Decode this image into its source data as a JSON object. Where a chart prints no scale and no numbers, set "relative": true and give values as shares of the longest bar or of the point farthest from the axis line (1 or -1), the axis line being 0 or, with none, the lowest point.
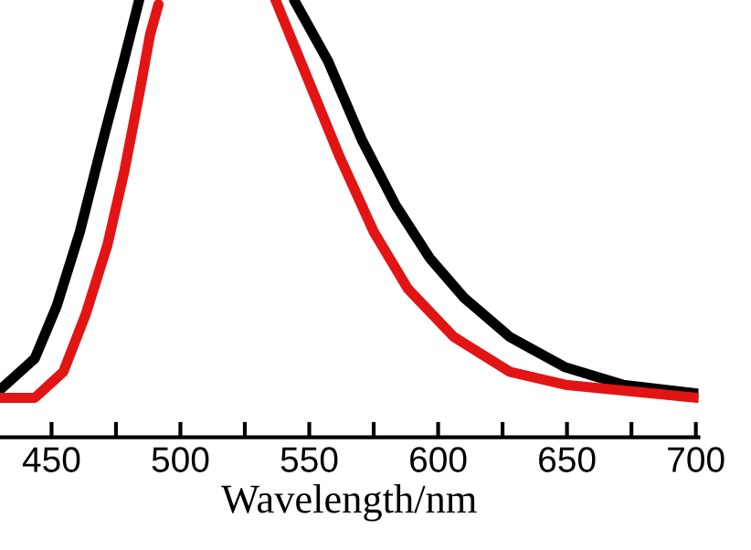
{
  "chart_data": {
    "type": "line",
    "xlabel": "Wavelength/nm",
    "relative": true,
    "xlim": [
      430,
      701
    ],
    "xticks": [
      450,
      {
        "value": 475,
        "label": null
      },
      500,
      {
        "value": 525,
        "label": null
      },
      550,
      {
        "value": 575,
        "label": null
      },
      600,
      {
        "value": 625,
        "label": null
      },
      650,
      {
        "value": 675,
        "label": null
      },
      700
    ],
    "tick_labels": "x",
    "grid": false,
    "legend": false,
    "line_style": "solid",
    "series": [
      {
        "color": "#000000",
        "x": [
          430.3,
          443.5,
          452,
          461,
          470,
          478,
          484,
          514,
          544.1,
          557.3,
          570.4,
          583.6,
          596.7,
          609.9,
          627.7,
          649.4,
          671.7,
          700.7
        ],
        "values": [
          0.11,
          0.18,
          0.3,
          0.47,
          0.68,
          0.86,
          1.0,
          null,
          1.0,
          0.86,
          0.68,
          0.53,
          0.41,
          0.32,
          0.23,
          0.16,
          0.12,
          0.1
        ]
      },
      {
        "color": "#e31414",
        "x": [
          430.3,
          443.5,
          454.6,
          463.2,
          471.7,
          478.3,
          484.2,
          488.2,
          491.5,
          514,
          536.9,
          548.7,
          561.9,
          575.0,
          588.2,
          606.0,
          627.7,
          649.4,
          700.7
        ],
        "values": [
          0.09,
          0.09,
          0.15,
          0.28,
          0.44,
          0.61,
          0.79,
          0.92,
          0.99,
          null,
          1.0,
          0.83,
          0.64,
          0.47,
          0.34,
          0.23,
          0.15,
          0.12,
          0.09
        ]
      }
    ]
  }
}
